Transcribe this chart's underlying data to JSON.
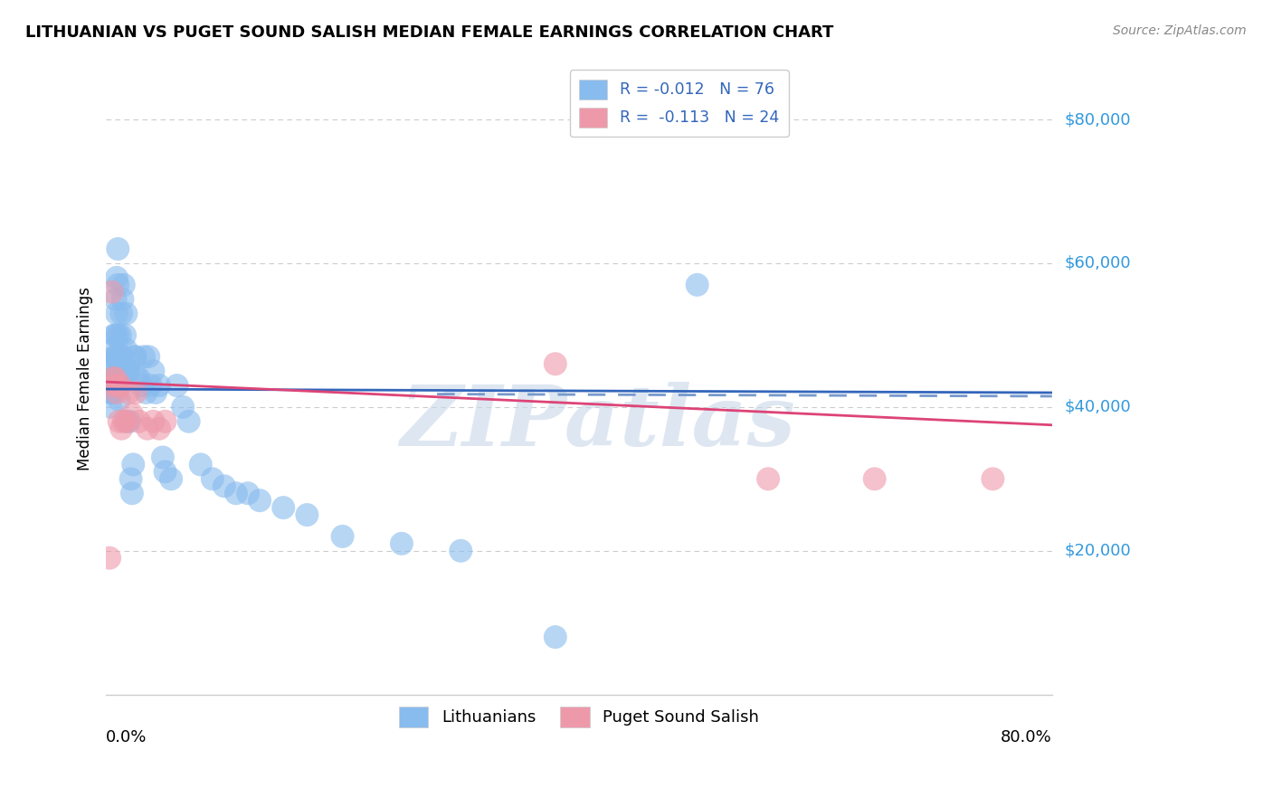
{
  "title": "LITHUANIAN VS PUGET SOUND SALISH MEDIAN FEMALE EARNINGS CORRELATION CHART",
  "source": "Source: ZipAtlas.com",
  "ylabel": "Median Female Earnings",
  "ytick_labels": [
    "$20,000",
    "$40,000",
    "$60,000",
    "$80,000"
  ],
  "ytick_values": [
    20000,
    40000,
    60000,
    80000
  ],
  "ylim": [
    0,
    88000
  ],
  "xlim": [
    0.0,
    0.8
  ],
  "watermark": "ZIPatlas",
  "blue_scatter_x": [
    0.003,
    0.004,
    0.004,
    0.005,
    0.005,
    0.005,
    0.006,
    0.006,
    0.006,
    0.007,
    0.007,
    0.007,
    0.008,
    0.008,
    0.008,
    0.008,
    0.009,
    0.009,
    0.009,
    0.01,
    0.01,
    0.01,
    0.01,
    0.011,
    0.011,
    0.012,
    0.012,
    0.012,
    0.013,
    0.013,
    0.014,
    0.014,
    0.015,
    0.015,
    0.016,
    0.016,
    0.017,
    0.017,
    0.018,
    0.018,
    0.02,
    0.02,
    0.021,
    0.022,
    0.023,
    0.024,
    0.025,
    0.026,
    0.028,
    0.03,
    0.032,
    0.034,
    0.036,
    0.038,
    0.04,
    0.042,
    0.045,
    0.048,
    0.05,
    0.055,
    0.06,
    0.065,
    0.07,
    0.08,
    0.09,
    0.1,
    0.11,
    0.12,
    0.13,
    0.15,
    0.17,
    0.2,
    0.25,
    0.3,
    0.38,
    0.5
  ],
  "blue_scatter_y": [
    44000,
    42000,
    40000,
    46000,
    44000,
    42000,
    48000,
    46000,
    42000,
    50000,
    47000,
    44000,
    55000,
    50000,
    47000,
    43000,
    58000,
    53000,
    47000,
    62000,
    57000,
    50000,
    44000,
    45000,
    41000,
    50000,
    46000,
    43000,
    53000,
    47000,
    55000,
    47000,
    57000,
    45000,
    50000,
    45000,
    53000,
    48000,
    45000,
    38000,
    45000,
    38000,
    30000,
    28000,
    32000,
    47000,
    47000,
    44000,
    44000,
    43000,
    47000,
    42000,
    47000,
    43000,
    45000,
    42000,
    43000,
    33000,
    31000,
    30000,
    43000,
    40000,
    38000,
    32000,
    30000,
    29000,
    28000,
    28000,
    27000,
    26000,
    25000,
    22000,
    21000,
    20000,
    8000,
    57000
  ],
  "pink_scatter_x": [
    0.003,
    0.005,
    0.006,
    0.007,
    0.008,
    0.009,
    0.01,
    0.011,
    0.012,
    0.013,
    0.015,
    0.017,
    0.019,
    0.022,
    0.025,
    0.028,
    0.035,
    0.04,
    0.045,
    0.05,
    0.38,
    0.56,
    0.65,
    0.75
  ],
  "pink_scatter_y": [
    19000,
    56000,
    44000,
    43000,
    44000,
    42000,
    43000,
    38000,
    43000,
    37000,
    38000,
    38000,
    42000,
    39000,
    42000,
    38000,
    37000,
    38000,
    37000,
    38000,
    46000,
    30000,
    30000,
    30000
  ],
  "blue_line_x": [
    0.0,
    0.8
  ],
  "blue_line_y": [
    42500,
    42000
  ],
  "blue_dash_line_x": [
    0.28,
    0.8
  ],
  "blue_dash_line_y": [
    41800,
    41500
  ],
  "pink_line_x": [
    0.0,
    0.8
  ],
  "pink_line_y": [
    43500,
    37500
  ],
  "blue_color": "#88bbee",
  "pink_color": "#ee99aa",
  "blue_line_color": "#3366bb",
  "blue_dash_color": "#7799cc",
  "pink_line_color": "#dd4477",
  "grid_color": "#cccccc",
  "right_label_color": "#3399dd",
  "background_color": "#ffffff",
  "legend_blue_label_r": "R = -0.012",
  "legend_blue_label_n": "N = 76",
  "legend_pink_label_r": "R =  -0.113",
  "legend_pink_label_n": "N = 24"
}
